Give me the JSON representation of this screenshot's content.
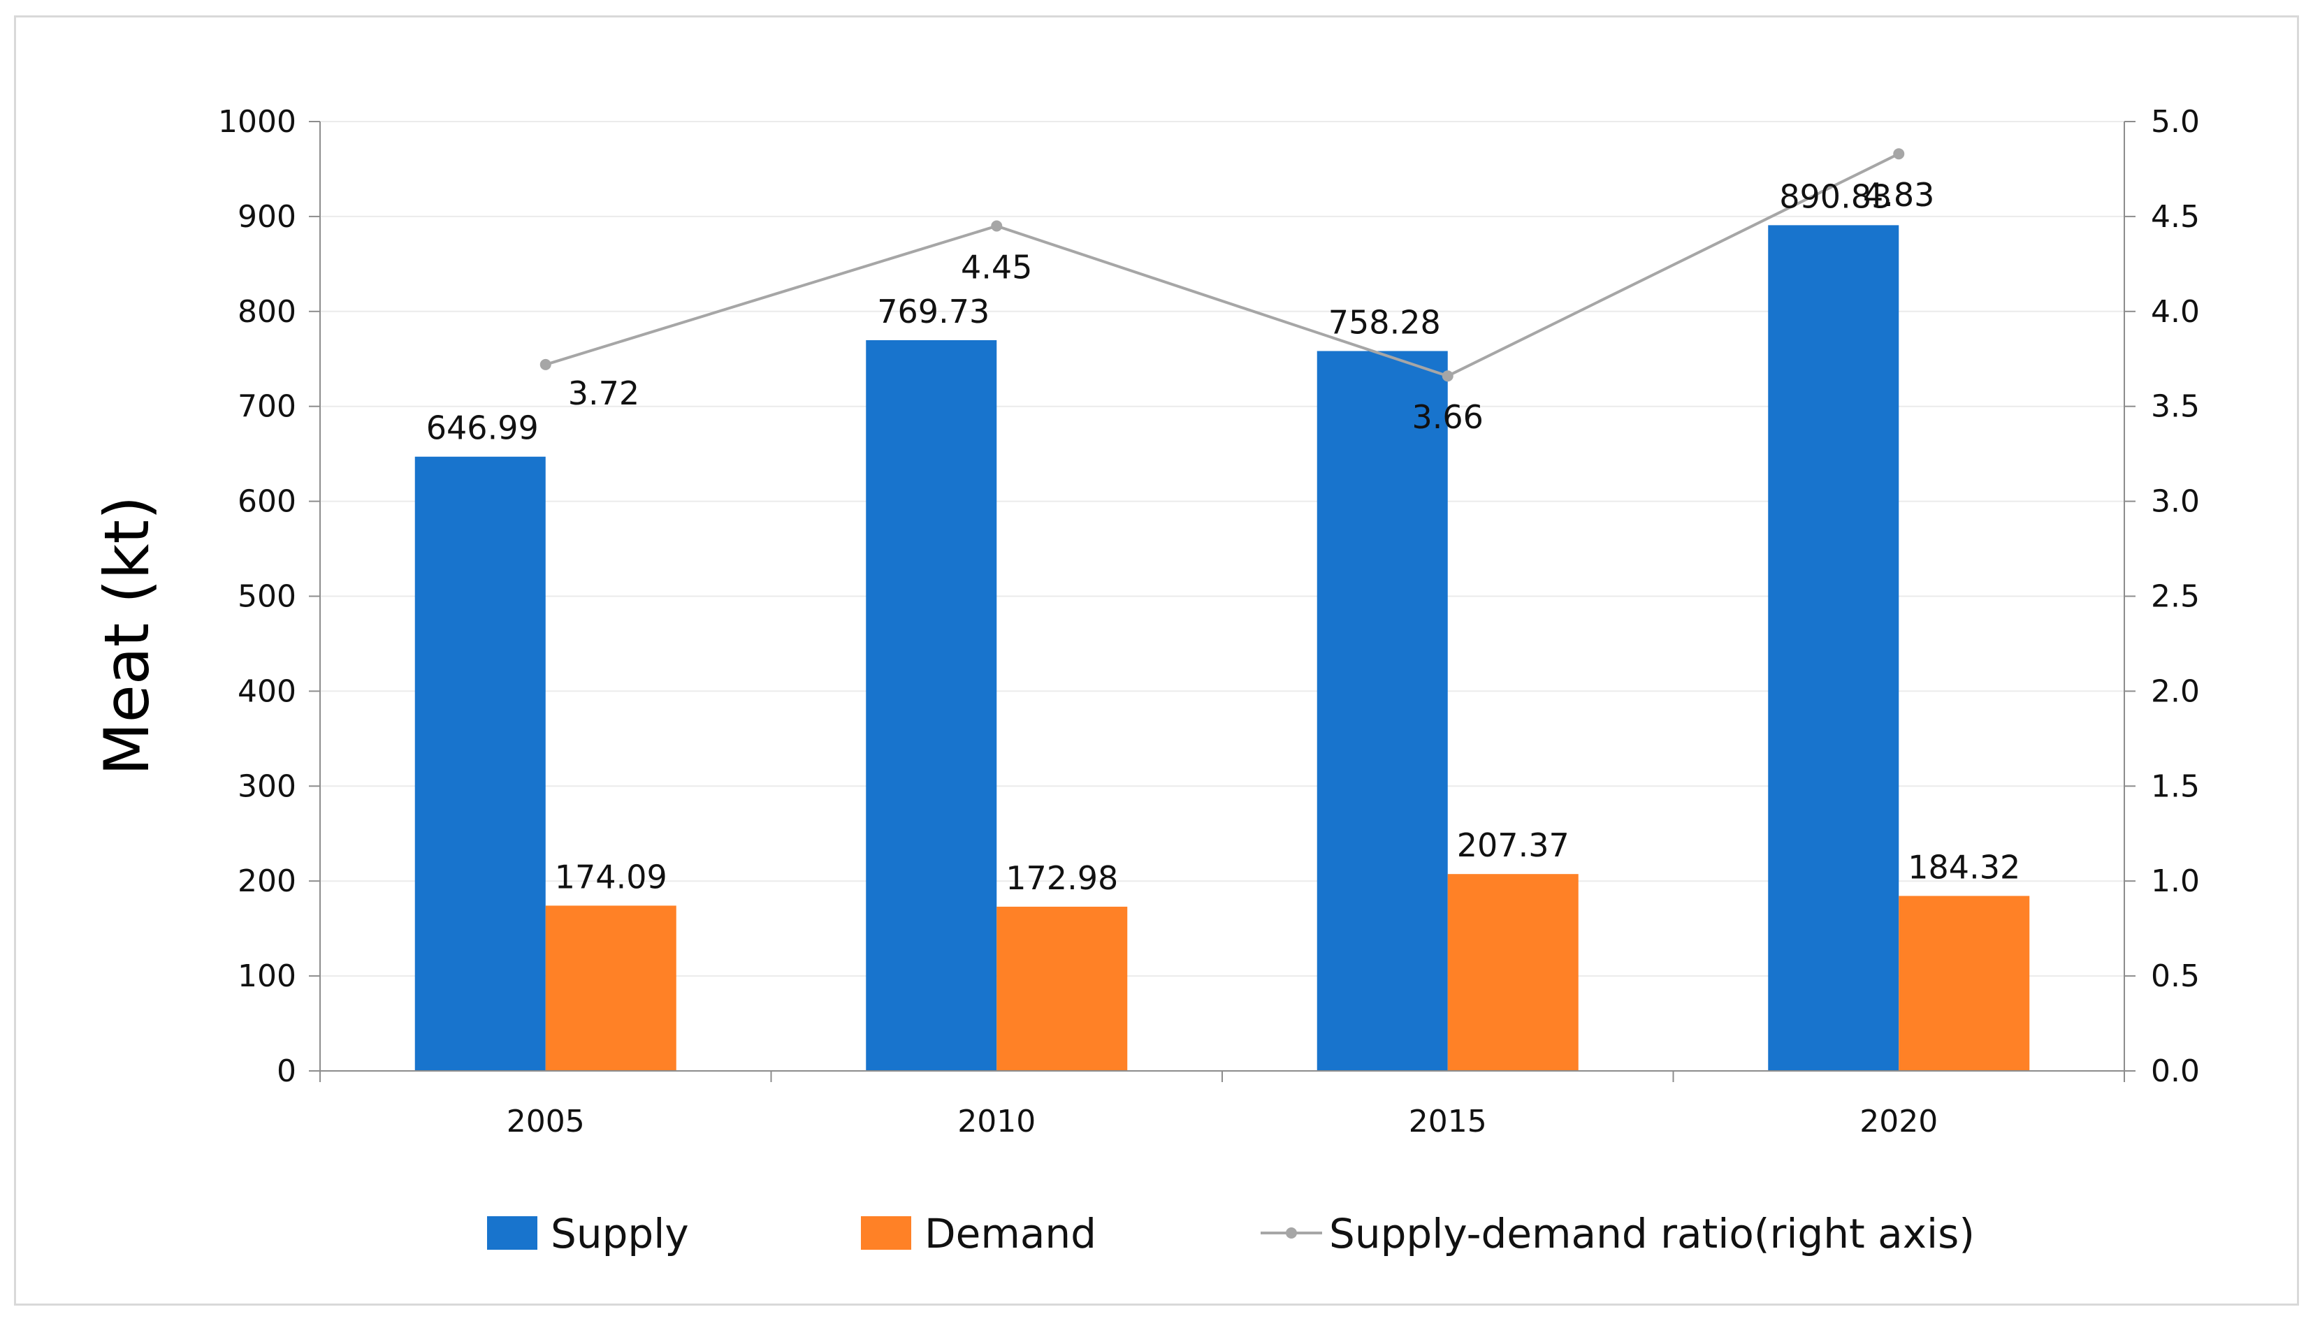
{
  "chart_data": {
    "type": "bar",
    "categories": [
      "2005",
      "2010",
      "2015",
      "2020"
    ],
    "series": [
      {
        "name": "Supply",
        "kind": "bar",
        "axis": "left",
        "color": "#1874CD",
        "values": [
          646.99,
          769.73,
          758.28,
          890.83
        ],
        "labels": [
          "646.99",
          "769.73",
          "758.28",
          "890.83"
        ]
      },
      {
        "name": "Demand",
        "kind": "bar",
        "axis": "left",
        "color": "#FF8126",
        "values": [
          174.09,
          172.98,
          207.37,
          184.32
        ],
        "labels": [
          "174.09",
          "172.98",
          "207.37",
          "184.32"
        ]
      },
      {
        "name": "Supply-demand ratio(right axis)",
        "kind": "line",
        "axis": "right",
        "color": "#A6A6A6",
        "values": [
          3.72,
          4.45,
          3.66,
          4.83
        ],
        "labels": [
          "3.72",
          "4.45",
          "3.66",
          "4.83"
        ]
      }
    ],
    "title": "",
    "xlabel": "",
    "ylabel": "Meat (kt)",
    "ylim": [
      0,
      1000
    ],
    "yticks": [
      "0",
      "100",
      "200",
      "300",
      "400",
      "500",
      "600",
      "700",
      "800",
      "900",
      "1000"
    ],
    "y2lim": [
      0,
      5
    ],
    "y2ticks": [
      "0.0",
      "0.5",
      "1.0",
      "1.5",
      "2.0",
      "2.5",
      "3.0",
      "3.5",
      "4.0",
      "4.5",
      "5.0"
    ],
    "grid": true,
    "legend": "bottom"
  }
}
